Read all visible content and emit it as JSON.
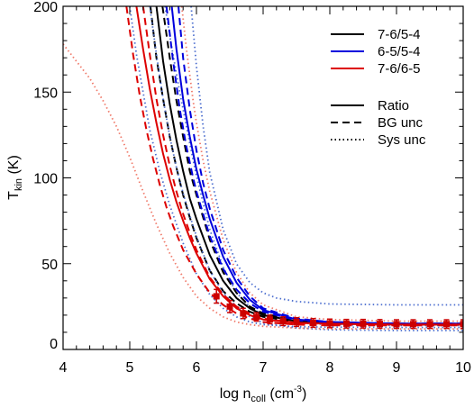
{
  "chart_data": {
    "type": "line",
    "title": "",
    "xlabel": {
      "main": "log n",
      "sub": "coll",
      "unit_open": " (cm",
      "unit_sup": "-3",
      "unit_close": ")"
    },
    "ylabel": {
      "main": "T",
      "sub": "kin",
      "unit": " (K)"
    },
    "xlim": [
      4,
      10
    ],
    "ylim": [
      0,
      200
    ],
    "x_ticks": [
      4,
      5,
      6,
      7,
      8,
      9,
      10
    ],
    "y_ticks": [
      0,
      50,
      100,
      150,
      200
    ],
    "grid": false,
    "legend_placement": "top-right",
    "legend_colors": [
      {
        "label": "7-6/5-4",
        "color": "#000000"
      },
      {
        "label": "6-5/5-4",
        "color": "#0000dd"
      },
      {
        "label": "7-6/6-5",
        "color": "#dd0000"
      }
    ],
    "legend_styles": [
      {
        "label": "Ratio",
        "dash": "solid"
      },
      {
        "label": "BG unc",
        "dash": "dashed"
      },
      {
        "label": "Sys unc",
        "dash": "dotted"
      }
    ],
    "series": [
      {
        "ratio": "7-6/5-4",
        "style": "Sys unc",
        "color": "#4d6fcf",
        "x": [
          5.53,
          5.62,
          5.75,
          5.9,
          6.0,
          6.2,
          6.4,
          6.6,
          6.8,
          7.0,
          7.2,
          7.5,
          8.0,
          9.0,
          10.0
        ],
        "y": [
          200,
          178,
          150,
          120,
          101,
          70,
          48,
          33,
          25,
          20,
          17,
          15.5,
          14.5,
          14,
          14
        ]
      },
      {
        "ratio": "7-6/5-4",
        "style": "Sys unc",
        "color": "#4d6fcf",
        "x": [
          5.0,
          5.1,
          5.2,
          5.3,
          5.45,
          5.6,
          5.8,
          6.0,
          6.2,
          6.4,
          6.6,
          6.8,
          7.0,
          7.5,
          8.0,
          9.0,
          10.0
        ],
        "y": [
          200,
          172,
          150,
          128,
          104,
          84,
          62,
          44,
          32,
          24,
          19,
          16,
          14.5,
          13.3,
          13,
          12.8,
          12.8
        ]
      },
      {
        "ratio": "7-6/5-4",
        "style": "BG unc",
        "color": "#000000",
        "x": [
          5.49,
          5.6,
          5.7,
          5.8,
          5.9,
          6.0,
          6.2,
          6.4,
          6.6,
          6.8,
          7.0,
          7.5,
          8.0,
          9.0,
          10.0
        ],
        "y": [
          200,
          170,
          145,
          124,
          104,
          90,
          64,
          45,
          33,
          25,
          21,
          17,
          15.5,
          15,
          15
        ]
      },
      {
        "ratio": "7-6/5-4",
        "style": "BG unc",
        "color": "#000000",
        "x": [
          5.31,
          5.4,
          5.5,
          5.6,
          5.7,
          5.8,
          5.9,
          6.0,
          6.2,
          6.4,
          6.6,
          6.8,
          7.0,
          7.5,
          8.0,
          9.0,
          10.0
        ],
        "y": [
          200,
          170,
          146,
          124,
          106,
          90,
          77,
          65,
          46,
          34,
          27,
          22,
          19,
          16,
          15,
          14.6,
          14.5
        ]
      },
      {
        "ratio": "7-6/5-4",
        "style": "Ratio",
        "color": "#000000",
        "x": [
          5.4,
          5.5,
          5.6,
          5.7,
          5.8,
          5.9,
          6.0,
          6.2,
          6.4,
          6.6,
          6.8,
          7.0,
          7.5,
          8.0,
          9.0,
          10.0
        ],
        "y": [
          200,
          168,
          143,
          122,
          104,
          88,
          76,
          55,
          40,
          30,
          24,
          20,
          16.5,
          15.5,
          15,
          15
        ]
      },
      {
        "ratio": "6-5/5-4",
        "style": "Sys unc",
        "color": "#4d6fcf",
        "x": [
          5.92,
          6.0,
          6.1,
          6.2,
          6.4,
          6.6,
          6.8,
          7.0,
          7.2,
          7.5,
          8.0,
          9.0,
          10.0
        ],
        "y": [
          200,
          165,
          130,
          103,
          70,
          50,
          39,
          33,
          30,
          28,
          26.5,
          26,
          26
        ]
      },
      {
        "ratio": "6-5/5-4",
        "style": "Sys unc",
        "color": "#4d6fcf",
        "x": [
          5.3,
          5.4,
          5.5,
          5.6,
          5.7,
          5.8,
          5.9,
          6.0,
          6.2,
          6.4,
          6.6,
          6.8,
          7.0,
          7.5,
          8.0,
          9.0,
          10.0
        ],
        "y": [
          200,
          172,
          146,
          124,
          106,
          91,
          78,
          66,
          46,
          33,
          25,
          19,
          15.5,
          12.5,
          11.5,
          11,
          11
        ]
      },
      {
        "ratio": "6-5/5-4",
        "style": "BG unc",
        "color": "#0000dd",
        "x": [
          5.73,
          5.8,
          5.9,
          6.0,
          6.1,
          6.2,
          6.4,
          6.6,
          6.8,
          7.0,
          7.5,
          8.0,
          9.0,
          10.0
        ],
        "y": [
          200,
          170,
          140,
          116,
          97,
          82,
          58,
          42,
          31,
          24,
          18,
          16,
          15,
          15
        ]
      },
      {
        "ratio": "6-5/5-4",
        "style": "BG unc",
        "color": "#0000dd",
        "x": [
          5.55,
          5.65,
          5.75,
          5.85,
          5.95,
          6.0,
          6.2,
          6.4,
          6.6,
          6.8,
          7.0,
          7.5,
          8.0,
          9.0,
          10.0
        ],
        "y": [
          200,
          168,
          140,
          118,
          100,
          92,
          66,
          47,
          35,
          27,
          22,
          17,
          15.5,
          15,
          15
        ]
      },
      {
        "ratio": "6-5/5-4",
        "style": "Ratio",
        "color": "#0000dd",
        "x": [
          5.63,
          5.7,
          5.8,
          5.9,
          6.0,
          6.1,
          6.2,
          6.4,
          6.6,
          6.8,
          7.0,
          7.5,
          8.0,
          9.0,
          10.0
        ],
        "y": [
          200,
          175,
          146,
          124,
          105,
          90,
          76,
          54,
          39,
          29,
          23,
          17.5,
          16,
          15,
          15
        ]
      },
      {
        "ratio": "7-6/6-5",
        "style": "Sys unc",
        "color": "#f07a6a",
        "x": [
          5.78,
          5.85,
          5.95,
          6.0,
          6.1,
          6.2,
          6.4,
          6.6,
          6.8,
          7.0,
          7.5,
          8.0,
          9.0,
          10.0
        ],
        "y": [
          200,
          175,
          145,
          132,
          110,
          92,
          64,
          45,
          33,
          26,
          19,
          17.5,
          16.5,
          16.5
        ]
      },
      {
        "ratio": "7-6/6-5",
        "style": "Sys unc",
        "color": "#f07a6a",
        "x": [
          4.0,
          4.2,
          4.4,
          4.6,
          4.8,
          5.0,
          5.2,
          5.4,
          5.6,
          5.8,
          6.0,
          6.2,
          6.4,
          6.6,
          6.8,
          7.0,
          7.5,
          8.0,
          9.0,
          10.0
        ],
        "y": [
          178,
          168,
          158,
          145,
          130,
          112,
          92,
          73,
          56,
          42,
          31,
          24,
          19,
          16,
          14.5,
          13.5,
          12.5,
          12,
          12,
          12
        ]
      },
      {
        "ratio": "7-6/6-5",
        "style": "BG unc",
        "color": "#dd0000",
        "x": [
          5.2,
          5.3,
          5.4,
          5.5,
          5.6,
          5.7,
          5.8,
          5.9,
          6.0,
          6.2,
          6.4,
          6.6,
          6.8,
          7.0,
          7.5,
          8.0,
          9.0,
          10.0
        ],
        "y": [
          200,
          172,
          146,
          125,
          107,
          92,
          79,
          68,
          58,
          42,
          32,
          25,
          21,
          18,
          15.5,
          15,
          14.5,
          14.5
        ]
      },
      {
        "ratio": "7-6/6-5",
        "style": "BG unc",
        "color": "#dd0000",
        "x": [
          4.95,
          5.05,
          5.15,
          5.25,
          5.35,
          5.45,
          5.55,
          5.65,
          5.8,
          6.0,
          6.2,
          6.4,
          6.6,
          6.8,
          7.0,
          7.5,
          8.0,
          9.0,
          10.0
        ],
        "y": [
          200,
          172,
          148,
          128,
          111,
          96,
          83,
          72,
          58,
          44,
          33,
          26,
          21,
          18,
          16,
          14.5,
          14,
          14,
          14
        ]
      },
      {
        "ratio": "7-6/6-5",
        "style": "Ratio",
        "color": "#dd0000",
        "x": [
          5.1,
          5.2,
          5.3,
          5.4,
          5.5,
          5.6,
          5.7,
          5.8,
          5.9,
          6.0,
          6.2,
          6.4,
          6.6,
          6.8,
          7.0,
          7.5,
          8.0,
          9.0,
          10.0
        ],
        "y": [
          200,
          175,
          152,
          132,
          114,
          99,
          86,
          75,
          65,
          56,
          41,
          31,
          24,
          20,
          17.5,
          15.5,
          15,
          14.5,
          14.5
        ]
      }
    ],
    "markers": {
      "color": "#cc0000",
      "style": "square",
      "x": [
        6.3,
        6.5,
        6.7,
        6.9,
        7.1,
        7.3,
        7.5,
        7.75,
        8.0,
        8.25,
        8.5,
        8.75,
        9.0,
        9.25,
        9.5,
        9.75,
        10.0
      ],
      "y": [
        31,
        25,
        21,
        19,
        17.5,
        16.5,
        16,
        15.5,
        15.2,
        15,
        15,
        14.9,
        14.8,
        14.8,
        14.8,
        14.8,
        14.8
      ],
      "err_low": [
        4,
        3.5,
        3,
        2.5,
        2.5,
        2.5,
        2.5,
        2.5,
        2.5,
        2.5,
        2.5,
        2.5,
        2.5,
        2.5,
        2.5,
        2.5,
        2.5
      ],
      "err_high": [
        4,
        3.5,
        3,
        2.5,
        2.5,
        2.5,
        2.5,
        2.5,
        2.5,
        2.5,
        2.5,
        2.5,
        2.5,
        2.5,
        2.5,
        2.5,
        2.5
      ]
    }
  }
}
